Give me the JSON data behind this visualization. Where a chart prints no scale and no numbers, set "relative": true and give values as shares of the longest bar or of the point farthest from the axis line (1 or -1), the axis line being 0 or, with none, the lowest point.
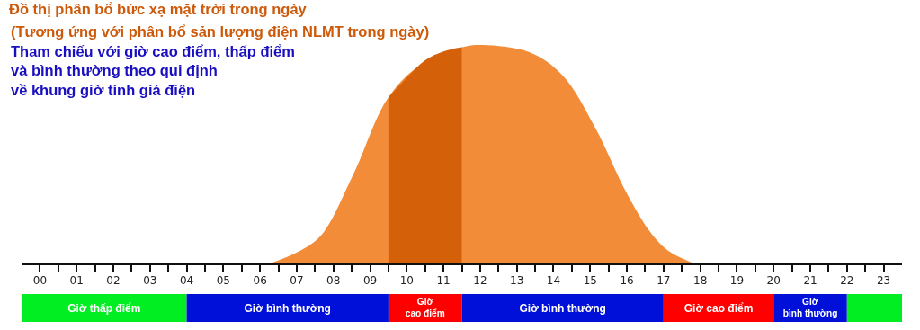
{
  "chart_data": [
    {
      "type": "area",
      "relative": true,
      "title": "Đồ thị phân bổ bức xạ mặt trời trong ngày",
      "subtitle": "(Tương ứng với phân bổ sản lượng điện NLMT trong ngày)",
      "annotations": [
        "Tham chiếu với giờ cao điểm, thấp điểm\nvà bình thường theo qui định\nvề khung giờ tính giá điện"
      ],
      "series": [
        {
          "color": "#f28c38",
          "x": [
            6.27,
            7,
            7.67,
            8.55,
            9.46,
            10.3,
            11.52,
            12.06,
            13.37,
            14.25,
            15.14,
            16.0,
            16.7,
            17.2,
            17.84
          ],
          "values": [
            0,
            0.05,
            0.13,
            0.41,
            0.75,
            0.9,
            0.99,
            1,
            0.965,
            0.86,
            0.62,
            0.32,
            0.13,
            0.05,
            0
          ]
        },
        {
          "color": "#d4610a",
          "x": [
            9.5,
            10,
            10.5,
            11,
            11.5
          ],
          "values": [
            0.76,
            0.85,
            0.93,
            0.97,
            0.99
          ]
        }
      ],
      "xlim": [
        -0.5,
        23.5
      ],
      "xticks": [
        {
          "value": 0,
          "label": "00"
        },
        {
          "value": 0.5,
          "label": null
        },
        {
          "value": 1,
          "label": "01"
        },
        {
          "value": 1.5,
          "label": null
        },
        {
          "value": 2,
          "label": "02"
        },
        {
          "value": 2.5,
          "label": null
        },
        {
          "value": 3,
          "label": "03"
        },
        {
          "value": 3.5,
          "label": null
        },
        {
          "value": 4,
          "label": "04"
        },
        {
          "value": 4.5,
          "label": null
        },
        {
          "value": 5,
          "label": "05"
        },
        {
          "value": 5.5,
          "label": null
        },
        {
          "value": 6,
          "label": "06"
        },
        {
          "value": 6.5,
          "label": null
        },
        {
          "value": 7,
          "label": "07"
        },
        {
          "value": 7.5,
          "label": null
        },
        {
          "value": 8,
          "label": "08"
        },
        {
          "value": 8.5,
          "label": null
        },
        {
          "value": 9,
          "label": "09"
        },
        {
          "value": 9.5,
          "label": null
        },
        10,
        {
          "value": 10.5,
          "label": null
        },
        11,
        {
          "value": 11.5,
          "label": null
        },
        12,
        {
          "value": 12.5,
          "label": null
        },
        13,
        {
          "value": 13.5,
          "label": null
        },
        14,
        {
          "value": 14.5,
          "label": null
        },
        15,
        {
          "value": 15.5,
          "label": null
        },
        16,
        {
          "value": 16.5,
          "label": null
        },
        17,
        {
          "value": 17.5,
          "label": null
        },
        18,
        {
          "value": 18.5,
          "label": null
        },
        19,
        {
          "value": 19.5,
          "label": null
        },
        20,
        {
          "value": 20.5,
          "label": null
        },
        21,
        {
          "value": 21.5,
          "label": null
        },
        22,
        {
          "value": 22.5,
          "label": null
        },
        23
      ],
      "grid": false
    },
    {
      "type": "bar",
      "orientation": "horizontal",
      "categories": [
        null
      ],
      "xlim": [
        -0.5,
        23.5
      ],
      "series": [
        {
          "name": "Giờ thấp điểm",
          "color": "#00ee22",
          "base": [
            -0.5
          ],
          "values": [
            4.5
          ]
        },
        {
          "name": "Giờ bình thường",
          "color": "#0010d8",
          "base": [
            4
          ],
          "values": [
            5.5
          ]
        },
        {
          "name": "Giờ\ncao điểm",
          "color": "#ff0000",
          "base": [
            9.5
          ],
          "values": [
            2
          ]
        },
        {
          "name": "Giờ bình thường",
          "color": "#0010d8",
          "base": [
            11.5
          ],
          "values": [
            5.5
          ]
        },
        {
          "name": "Giờ cao điểm",
          "color": "#ff0000",
          "base": [
            17
          ],
          "values": [
            3
          ]
        },
        {
          "name": "Giờ\nbình thường",
          "color": "#0010d8",
          "base": [
            20
          ],
          "values": [
            2
          ]
        },
        {
          "color": "#00ee22",
          "base": [
            22
          ],
          "values": [
            1.5
          ]
        }
      ]
    }
  ]
}
